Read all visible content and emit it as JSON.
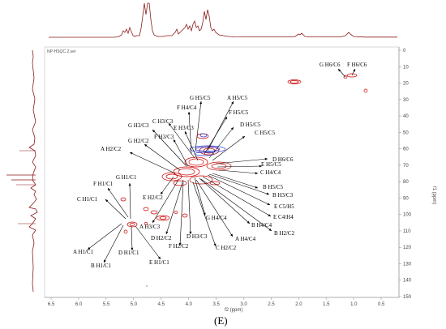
{
  "file_name": "NP-HSQC.2.ser",
  "panel_label": "(E)",
  "f1_axis": {
    "label": "f1 (ppm)",
    "ticks": [
      "0",
      "10",
      "20",
      "30",
      "40",
      "50",
      "60",
      "70",
      "80",
      "90",
      "100",
      "110",
      "120",
      "130",
      "140",
      "150"
    ]
  },
  "f2_axis": {
    "label": "f2 (ppm)",
    "ticks": [
      "6.5",
      "6.0",
      "5.5",
      "5.0",
      "4.5",
      "4.0",
      "3.5",
      "3.0",
      "2.5",
      "2.0",
      "1.5",
      "1.0",
      "0.5"
    ]
  },
  "colors": {
    "positive": "#cc0000",
    "negative": "#1f2fd0",
    "spectrum": "#8b1a1a",
    "arrow": "#000000"
  },
  "labels": [
    "G H6/C6",
    "F H6/C6",
    "G H5/C5",
    "A H5/C5",
    "F H4/C4",
    "F H5/C5",
    "C H3/C3",
    "D H5/C5",
    "E H3/C3",
    "C H5/C5",
    "G H3/C3",
    "F H3/C3",
    "G H2/C2",
    "A H2/C2",
    "D H6/C6",
    "E H5/C5",
    "C H4/C4",
    "F H1/C1",
    "G H1/C1",
    "E H2/C2",
    "C H1/C1",
    "B H5/C5",
    "B H3/C3",
    "E C5/H5",
    "E C4/H4",
    "B H4/C4",
    "B H2/C2",
    "G H4/C4",
    "A H3/C3",
    "D H2/C2",
    "D H3/C3",
    "A H4/C4",
    "F H2/C2",
    "C H2/C2",
    "A H1/C1",
    "B H1/C1",
    "D H1/C1",
    "E H1/C1"
  ]
}
